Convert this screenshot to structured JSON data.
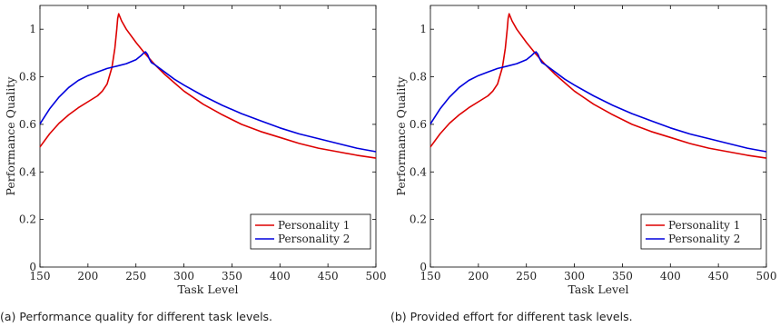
{
  "chart_data": [
    {
      "type": "line",
      "caption": "(a) Performance quality for different task levels.",
      "xlabel": "Task Level",
      "ylabel": "Performance Quality",
      "xlim": [
        150,
        500
      ],
      "ylim": [
        0,
        1.1
      ],
      "xticks": [
        150,
        200,
        250,
        300,
        350,
        400,
        450,
        500
      ],
      "yticks": [
        0,
        0.2,
        0.4,
        0.6,
        0.8,
        1
      ],
      "ytick_labels": [
        "0",
        "0.2",
        "0.4",
        "0.6",
        "0.8",
        "1"
      ],
      "grid": false,
      "legend": "bottom-right",
      "series": [
        {
          "name": "Personality 1",
          "color": "#dd0000",
          "points": [
            [
              150,
              0.505
            ],
            [
              160,
              0.56
            ],
            [
              170,
              0.605
            ],
            [
              180,
              0.64
            ],
            [
              190,
              0.67
            ],
            [
              200,
              0.695
            ],
            [
              210,
              0.72
            ],
            [
              215,
              0.74
            ],
            [
              220,
              0.77
            ],
            [
              225,
              0.84
            ],
            [
              228,
              0.92
            ],
            [
              230,
              1.0
            ],
            [
              231,
              1.045
            ],
            [
              232,
              1.065
            ],
            [
              235,
              1.035
            ],
            [
              240,
              1.0
            ],
            [
              250,
              0.945
            ],
            [
              260,
              0.895
            ],
            [
              270,
              0.85
            ],
            [
              280,
              0.81
            ],
            [
              290,
              0.775
            ],
            [
              300,
              0.74
            ],
            [
              320,
              0.685
            ],
            [
              340,
              0.64
            ],
            [
              360,
              0.6
            ],
            [
              380,
              0.57
            ],
            [
              400,
              0.545
            ],
            [
              420,
              0.52
            ],
            [
              440,
              0.5
            ],
            [
              460,
              0.485
            ],
            [
              480,
              0.47
            ],
            [
              500,
              0.458
            ]
          ]
        },
        {
          "name": "Personality 2",
          "color": "#0000dd",
          "points": [
            [
              150,
              0.602
            ],
            [
              160,
              0.665
            ],
            [
              170,
              0.715
            ],
            [
              180,
              0.755
            ],
            [
              190,
              0.785
            ],
            [
              200,
              0.805
            ],
            [
              210,
              0.82
            ],
            [
              220,
              0.835
            ],
            [
              230,
              0.845
            ],
            [
              240,
              0.855
            ],
            [
              250,
              0.872
            ],
            [
              255,
              0.888
            ],
            [
              258,
              0.9
            ],
            [
              260,
              0.905
            ],
            [
              262,
              0.895
            ],
            [
              264,
              0.875
            ],
            [
              266,
              0.86
            ],
            [
              270,
              0.85
            ],
            [
              280,
              0.82
            ],
            [
              290,
              0.79
            ],
            [
              300,
              0.765
            ],
            [
              320,
              0.72
            ],
            [
              340,
              0.68
            ],
            [
              360,
              0.645
            ],
            [
              380,
              0.615
            ],
            [
              400,
              0.585
            ],
            [
              420,
              0.56
            ],
            [
              440,
              0.54
            ],
            [
              460,
              0.52
            ],
            [
              480,
              0.5
            ],
            [
              500,
              0.485
            ]
          ]
        }
      ]
    },
    {
      "type": "line",
      "caption": "(b) Provided effort for different task levels.",
      "xlabel": "Task Level",
      "ylabel": "Performance Quality",
      "xlim": [
        150,
        500
      ],
      "ylim": [
        0,
        1.1
      ],
      "xticks": [
        150,
        200,
        250,
        300,
        350,
        400,
        450,
        500
      ],
      "yticks": [
        0,
        0.2,
        0.4,
        0.6,
        0.8,
        1
      ],
      "ytick_labels": [
        "0",
        "0.2",
        "0.4",
        "0.6",
        "0.8",
        "1"
      ],
      "grid": false,
      "legend": "bottom-right",
      "series": [
        {
          "name": "Personality 1",
          "color": "#dd0000",
          "points": [
            [
              150,
              0.505
            ],
            [
              160,
              0.56
            ],
            [
              170,
              0.605
            ],
            [
              180,
              0.64
            ],
            [
              190,
              0.67
            ],
            [
              200,
              0.695
            ],
            [
              210,
              0.72
            ],
            [
              215,
              0.74
            ],
            [
              220,
              0.77
            ],
            [
              225,
              0.84
            ],
            [
              228,
              0.92
            ],
            [
              230,
              1.0
            ],
            [
              231,
              1.045
            ],
            [
              232,
              1.065
            ],
            [
              235,
              1.035
            ],
            [
              240,
              1.0
            ],
            [
              250,
              0.945
            ],
            [
              260,
              0.895
            ],
            [
              270,
              0.85
            ],
            [
              280,
              0.81
            ],
            [
              290,
              0.775
            ],
            [
              300,
              0.74
            ],
            [
              320,
              0.685
            ],
            [
              340,
              0.64
            ],
            [
              360,
              0.6
            ],
            [
              380,
              0.57
            ],
            [
              400,
              0.545
            ],
            [
              420,
              0.52
            ],
            [
              440,
              0.5
            ],
            [
              460,
              0.485
            ],
            [
              480,
              0.47
            ],
            [
              500,
              0.458
            ]
          ]
        },
        {
          "name": "Personality 2",
          "color": "#0000dd",
          "points": [
            [
              150,
              0.602
            ],
            [
              160,
              0.665
            ],
            [
              170,
              0.715
            ],
            [
              180,
              0.755
            ],
            [
              190,
              0.785
            ],
            [
              200,
              0.805
            ],
            [
              210,
              0.82
            ],
            [
              220,
              0.835
            ],
            [
              230,
              0.845
            ],
            [
              240,
              0.855
            ],
            [
              250,
              0.872
            ],
            [
              255,
              0.888
            ],
            [
              258,
              0.9
            ],
            [
              260,
              0.905
            ],
            [
              262,
              0.895
            ],
            [
              264,
              0.875
            ],
            [
              266,
              0.86
            ],
            [
              270,
              0.85
            ],
            [
              280,
              0.82
            ],
            [
              290,
              0.79
            ],
            [
              300,
              0.765
            ],
            [
              320,
              0.72
            ],
            [
              340,
              0.68
            ],
            [
              360,
              0.645
            ],
            [
              380,
              0.615
            ],
            [
              400,
              0.585
            ],
            [
              420,
              0.56
            ],
            [
              440,
              0.54
            ],
            [
              460,
              0.52
            ],
            [
              480,
              0.5
            ],
            [
              500,
              0.485
            ]
          ]
        }
      ]
    }
  ]
}
